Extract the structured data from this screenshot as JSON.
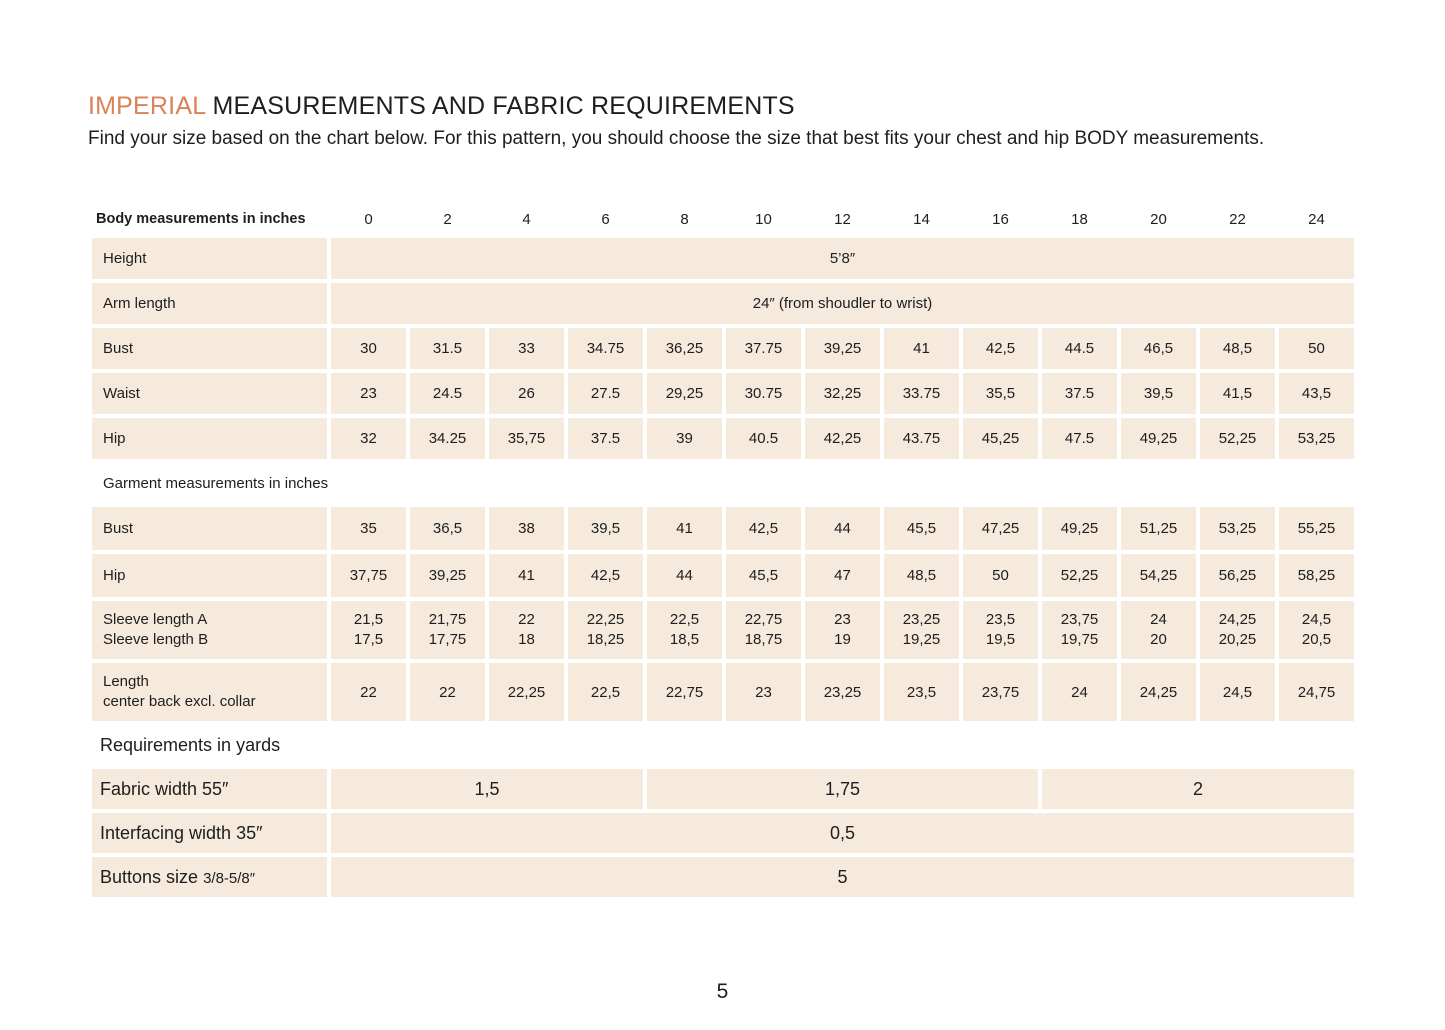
{
  "heading": {
    "accent": "IMPERIAL",
    "rest": " MEASUREMENTS AND FABRIC REQUIREMENTS"
  },
  "intro": "Find your size based on the chart below. For this pattern, you should choose the size that best fits your chest and hip BODY measurements.",
  "body_table": {
    "label": "Body measurements in inches",
    "sizes": [
      "0",
      "2",
      "4",
      "6",
      "8",
      "10",
      "12",
      "14",
      "16",
      "18",
      "20",
      "22",
      "24"
    ],
    "height": {
      "label": "Height",
      "value": "5’8″"
    },
    "arm_length": {
      "label": "Arm length",
      "value": "24″ (from shoudler to wrist)"
    },
    "rows": [
      {
        "label": "Bust",
        "values": [
          "30",
          "31.5",
          "33",
          "34.75",
          "36,25",
          "37.75",
          "39,25",
          "41",
          "42,5",
          "44.5",
          "46,5",
          "48,5",
          "50"
        ]
      },
      {
        "label": "Waist",
        "values": [
          "23",
          "24.5",
          "26",
          "27.5",
          "29,25",
          "30.75",
          "32,25",
          "33.75",
          "35,5",
          "37.5",
          "39,5",
          "41,5",
          "43,5"
        ]
      },
      {
        "label": "Hip",
        "values": [
          "32",
          "34.25",
          "35,75",
          "37.5",
          "39",
          "40.5",
          "42,25",
          "43.75",
          "45,25",
          "47.5",
          "49,25",
          "52,25",
          "53,25"
        ]
      }
    ]
  },
  "garment_table": {
    "label": "Garment measurements in inches",
    "bust": {
      "label": "Bust",
      "values": [
        "35",
        "36,5",
        "38",
        "39,5",
        "41",
        "42,5",
        "44",
        "45,5",
        "47,25",
        "49,25",
        "51,25",
        "53,25",
        "55,25"
      ]
    },
    "hip": {
      "label": "Hip",
      "values": [
        "37,75",
        "39,25",
        "41",
        "42,5",
        "44",
        "45,5",
        "47",
        "48,5",
        "50",
        "52,25",
        "54,25",
        "56,25",
        "58,25"
      ]
    },
    "sleeve": {
      "label_a": "Sleeve length  A",
      "label_b": "Sleeve length B",
      "values_a": [
        "21,5",
        "21,75",
        "22",
        "22,25",
        "22,5",
        "22,75",
        "23",
        "23,25",
        "23,5",
        "23,75",
        "24",
        "24,25",
        "24,5"
      ],
      "values_b": [
        "17,5",
        "17,75",
        "18",
        "18,25",
        "18,5",
        "18,75",
        "19",
        "19,25",
        "19,5",
        "19,75",
        "20",
        "20,25",
        "20,5"
      ]
    },
    "length": {
      "label_line1": "Length",
      "label_line2": "center back excl. collar",
      "values": [
        "22",
        "22",
        "22,25",
        "22,5",
        "22,75",
        "23",
        "23,25",
        "23,5",
        "23,75",
        "24",
        "24,25",
        "24,5",
        "24,75"
      ]
    }
  },
  "requirements": {
    "label": "Requirements in yards",
    "fabric": {
      "label": "Fabric width 55″",
      "values": [
        "1,5",
        "1,75",
        "2"
      ]
    },
    "interfacing": {
      "label": "Interfacing width 35″",
      "value": "0,5"
    },
    "buttons": {
      "label": "Buttons size ",
      "label_small": "3/8-5/8″",
      "value": "5"
    }
  },
  "page_number": "5"
}
